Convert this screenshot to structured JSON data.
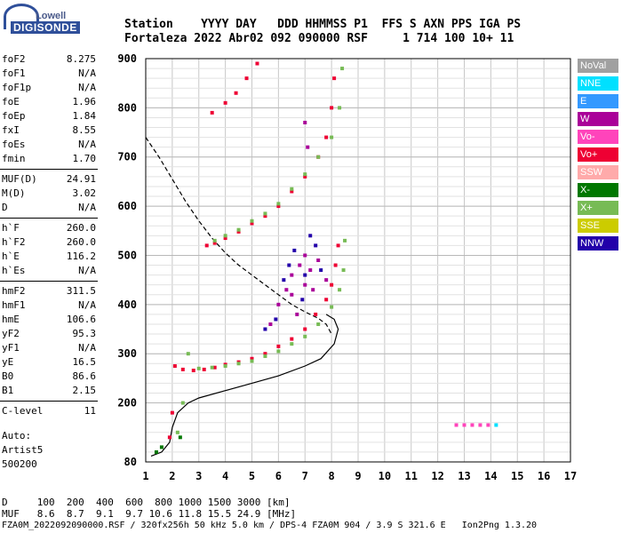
{
  "logo": {
    "top": "Lowell",
    "main": "DIGISONDE"
  },
  "header": {
    "line1": "Station    YYYY DAY   DDD HHMMSS P1  FFS S AXN PPS IGA PS",
    "line2": "Fortaleza 2022 Abr02 092 090000 RSF     1 714 100 10+ 11"
  },
  "params_group1": [
    {
      "k": "foF2",
      "v": "8.275"
    },
    {
      "k": "foF1",
      "v": "N/A"
    },
    {
      "k": "foF1p",
      "v": "N/A"
    },
    {
      "k": "foE",
      "v": "1.96"
    },
    {
      "k": "foEp",
      "v": "1.84"
    },
    {
      "k": "fxI",
      "v": "8.55"
    },
    {
      "k": "foEs",
      "v": "N/A"
    },
    {
      "k": "fmin",
      "v": "1.70"
    }
  ],
  "params_group2": [
    {
      "k": "MUF(D)",
      "v": "24.91"
    },
    {
      "k": "M(D)",
      "v": "3.02"
    },
    {
      "k": "D",
      "v": "N/A"
    }
  ],
  "params_group3": [
    {
      "k": "h`F",
      "v": "260.0"
    },
    {
      "k": "h`F2",
      "v": "260.0"
    },
    {
      "k": "h`E",
      "v": "116.2"
    },
    {
      "k": "h`Es",
      "v": "N/A"
    }
  ],
  "params_group4": [
    {
      "k": "hmF2",
      "v": "311.5"
    },
    {
      "k": "hmF1",
      "v": "N/A"
    },
    {
      "k": "hmE",
      "v": "106.6"
    },
    {
      "k": "yF2",
      "v": "95.3"
    },
    {
      "k": "yF1",
      "v": "N/A"
    },
    {
      "k": "yE",
      "v": "16.5"
    },
    {
      "k": "B0",
      "v": "86.6"
    },
    {
      "k": "B1",
      "v": "2.15"
    }
  ],
  "params_group5": [
    {
      "k": "C-level",
      "v": "11"
    }
  ],
  "autoscale": {
    "line1": "Auto:",
    "line2": "Artist5",
    "line3": "500200"
  },
  "footer": {
    "d_row": "D     100  200  400  600  800 1000 1500 3000 [km]",
    "muf_row": "MUF   8.6  8.7  9.1  9.7 10.6 11.8 15.5 24.9 [MHz]",
    "file_row": "FZA0M_2022092090000.RSF / 320fx256h 50 kHz 5.0 km / DPS-4 FZA0M 904 / 3.9 S 321.6 E   Ion2Png 1.3.20"
  },
  "legend": [
    {
      "label": "NoVal",
      "color": "#a0a0a0"
    },
    {
      "label": "NNE",
      "color": "#00e0ff"
    },
    {
      "label": "E",
      "color": "#3399ff"
    },
    {
      "label": "W",
      "color": "#aa0099"
    },
    {
      "label": "Vo-",
      "color": "#ff44bb"
    },
    {
      "label": "Vo+",
      "color": "#ee0033"
    },
    {
      "label": "SSW",
      "color": "#ffaaaa"
    },
    {
      "label": "X-",
      "color": "#007700"
    },
    {
      "label": "X+",
      "color": "#77bb55"
    },
    {
      "label": "SSE",
      "color": "#cccc00"
    },
    {
      "label": "NNW",
      "color": "#2200aa"
    }
  ],
  "chart_data": {
    "type": "scatter",
    "xlabel": "",
    "ylabel": "",
    "xlim": [
      1,
      17
    ],
    "ylim": [
      80,
      900
    ],
    "x_ticks": [
      1,
      2,
      3,
      4,
      5,
      6,
      7,
      8,
      9,
      10,
      11,
      12,
      13,
      14,
      15,
      16,
      17
    ],
    "y_ticks": [
      80,
      200,
      300,
      400,
      500,
      600,
      700,
      800,
      900
    ],
    "grid": true,
    "series": [
      {
        "name": "Vo+",
        "color": "#ee0033",
        "points": [
          [
            1.9,
            130
          ],
          [
            2.0,
            180
          ],
          [
            2.1,
            275
          ],
          [
            2.4,
            268
          ],
          [
            2.8,
            266
          ],
          [
            3.2,
            268
          ],
          [
            3.6,
            272
          ],
          [
            4.0,
            278
          ],
          [
            4.5,
            283
          ],
          [
            5.0,
            290
          ],
          [
            5.5,
            300
          ],
          [
            6.0,
            315
          ],
          [
            6.5,
            330
          ],
          [
            7.0,
            350
          ],
          [
            7.4,
            380
          ],
          [
            7.8,
            410
          ],
          [
            8.0,
            440
          ],
          [
            8.15,
            480
          ],
          [
            8.25,
            520
          ],
          [
            3.3,
            520
          ],
          [
            3.6,
            525
          ],
          [
            4.0,
            535
          ],
          [
            4.5,
            548
          ],
          [
            5.0,
            565
          ],
          [
            5.5,
            580
          ],
          [
            6.0,
            600
          ],
          [
            6.5,
            630
          ],
          [
            7.0,
            660
          ],
          [
            7.5,
            700
          ],
          [
            7.8,
            740
          ],
          [
            8.0,
            800
          ],
          [
            8.1,
            860
          ],
          [
            3.5,
            790
          ],
          [
            4.0,
            810
          ],
          [
            4.4,
            830
          ],
          [
            4.8,
            860
          ],
          [
            5.2,
            890
          ]
        ]
      },
      {
        "name": "X+",
        "color": "#77bb55",
        "points": [
          [
            2.2,
            140
          ],
          [
            2.4,
            200
          ],
          [
            2.6,
            300
          ],
          [
            3.0,
            270
          ],
          [
            3.5,
            272
          ],
          [
            4.0,
            275
          ],
          [
            4.5,
            280
          ],
          [
            5.0,
            285
          ],
          [
            5.5,
            295
          ],
          [
            6.0,
            305
          ],
          [
            6.5,
            320
          ],
          [
            7.0,
            335
          ],
          [
            7.5,
            360
          ],
          [
            8.0,
            395
          ],
          [
            8.3,
            430
          ],
          [
            8.45,
            470
          ],
          [
            8.5,
            530
          ],
          [
            3.6,
            530
          ],
          [
            4.0,
            540
          ],
          [
            4.5,
            552
          ],
          [
            5.0,
            570
          ],
          [
            5.5,
            585
          ],
          [
            6.0,
            605
          ],
          [
            6.5,
            635
          ],
          [
            7.0,
            665
          ],
          [
            7.5,
            700
          ],
          [
            8.0,
            740
          ],
          [
            8.3,
            800
          ],
          [
            8.4,
            880
          ]
        ]
      },
      {
        "name": "W",
        "color": "#aa0099",
        "points": [
          [
            6.0,
            400
          ],
          [
            6.3,
            430
          ],
          [
            6.5,
            460
          ],
          [
            6.8,
            480
          ],
          [
            7.0,
            440
          ],
          [
            7.2,
            470
          ],
          [
            7.5,
            490
          ],
          [
            7.8,
            450
          ],
          [
            6.5,
            420
          ],
          [
            7.0,
            500
          ],
          [
            7.3,
            430
          ],
          [
            6.7,
            380
          ],
          [
            7.1,
            720
          ],
          [
            7.0,
            770
          ],
          [
            5.7,
            360
          ]
        ]
      },
      {
        "name": "NNW",
        "color": "#2200aa",
        "points": [
          [
            6.2,
            450
          ],
          [
            6.6,
            510
          ],
          [
            7.0,
            460
          ],
          [
            7.4,
            520
          ],
          [
            6.9,
            410
          ],
          [
            7.6,
            470
          ],
          [
            6.4,
            480
          ],
          [
            7.2,
            540
          ],
          [
            5.5,
            350
          ],
          [
            5.9,
            370
          ]
        ]
      },
      {
        "name": "Vo-",
        "color": "#ff44bb",
        "points": [
          [
            12.7,
            155
          ],
          [
            13.0,
            155
          ],
          [
            13.3,
            155
          ],
          [
            13.6,
            155
          ],
          [
            13.9,
            155
          ]
        ]
      },
      {
        "name": "NNE",
        "color": "#00e0ff",
        "points": [
          [
            14.2,
            155
          ]
        ]
      },
      {
        "name": "X-",
        "color": "#007700",
        "points": [
          [
            1.4,
            100
          ],
          [
            1.6,
            110
          ],
          [
            2.3,
            130
          ]
        ]
      }
    ],
    "lines": [
      {
        "name": "profile",
        "style": "solid",
        "points": [
          [
            1.2,
            92
          ],
          [
            1.6,
            100
          ],
          [
            1.9,
            120
          ],
          [
            2.0,
            150
          ],
          [
            2.2,
            180
          ],
          [
            2.6,
            200
          ],
          [
            3.0,
            210
          ],
          [
            4.0,
            225
          ],
          [
            5.0,
            240
          ],
          [
            6.0,
            255
          ],
          [
            7.0,
            275
          ],
          [
            7.6,
            290
          ],
          [
            8.1,
            320
          ],
          [
            8.25,
            350
          ],
          [
            8.1,
            370
          ],
          [
            7.8,
            380
          ]
        ]
      },
      {
        "name": "dashed",
        "style": "dashed",
        "points": [
          [
            1.0,
            740
          ],
          [
            1.5,
            700
          ],
          [
            2.0,
            655
          ],
          [
            2.5,
            610
          ],
          [
            3.0,
            570
          ],
          [
            3.5,
            535
          ],
          [
            4.0,
            505
          ],
          [
            4.5,
            480
          ],
          [
            5.0,
            460
          ],
          [
            5.5,
            440
          ],
          [
            6.0,
            420
          ],
          [
            6.5,
            400
          ],
          [
            7.0,
            385
          ],
          [
            7.5,
            372
          ],
          [
            7.8,
            360
          ],
          [
            8.0,
            340
          ]
        ]
      }
    ]
  }
}
